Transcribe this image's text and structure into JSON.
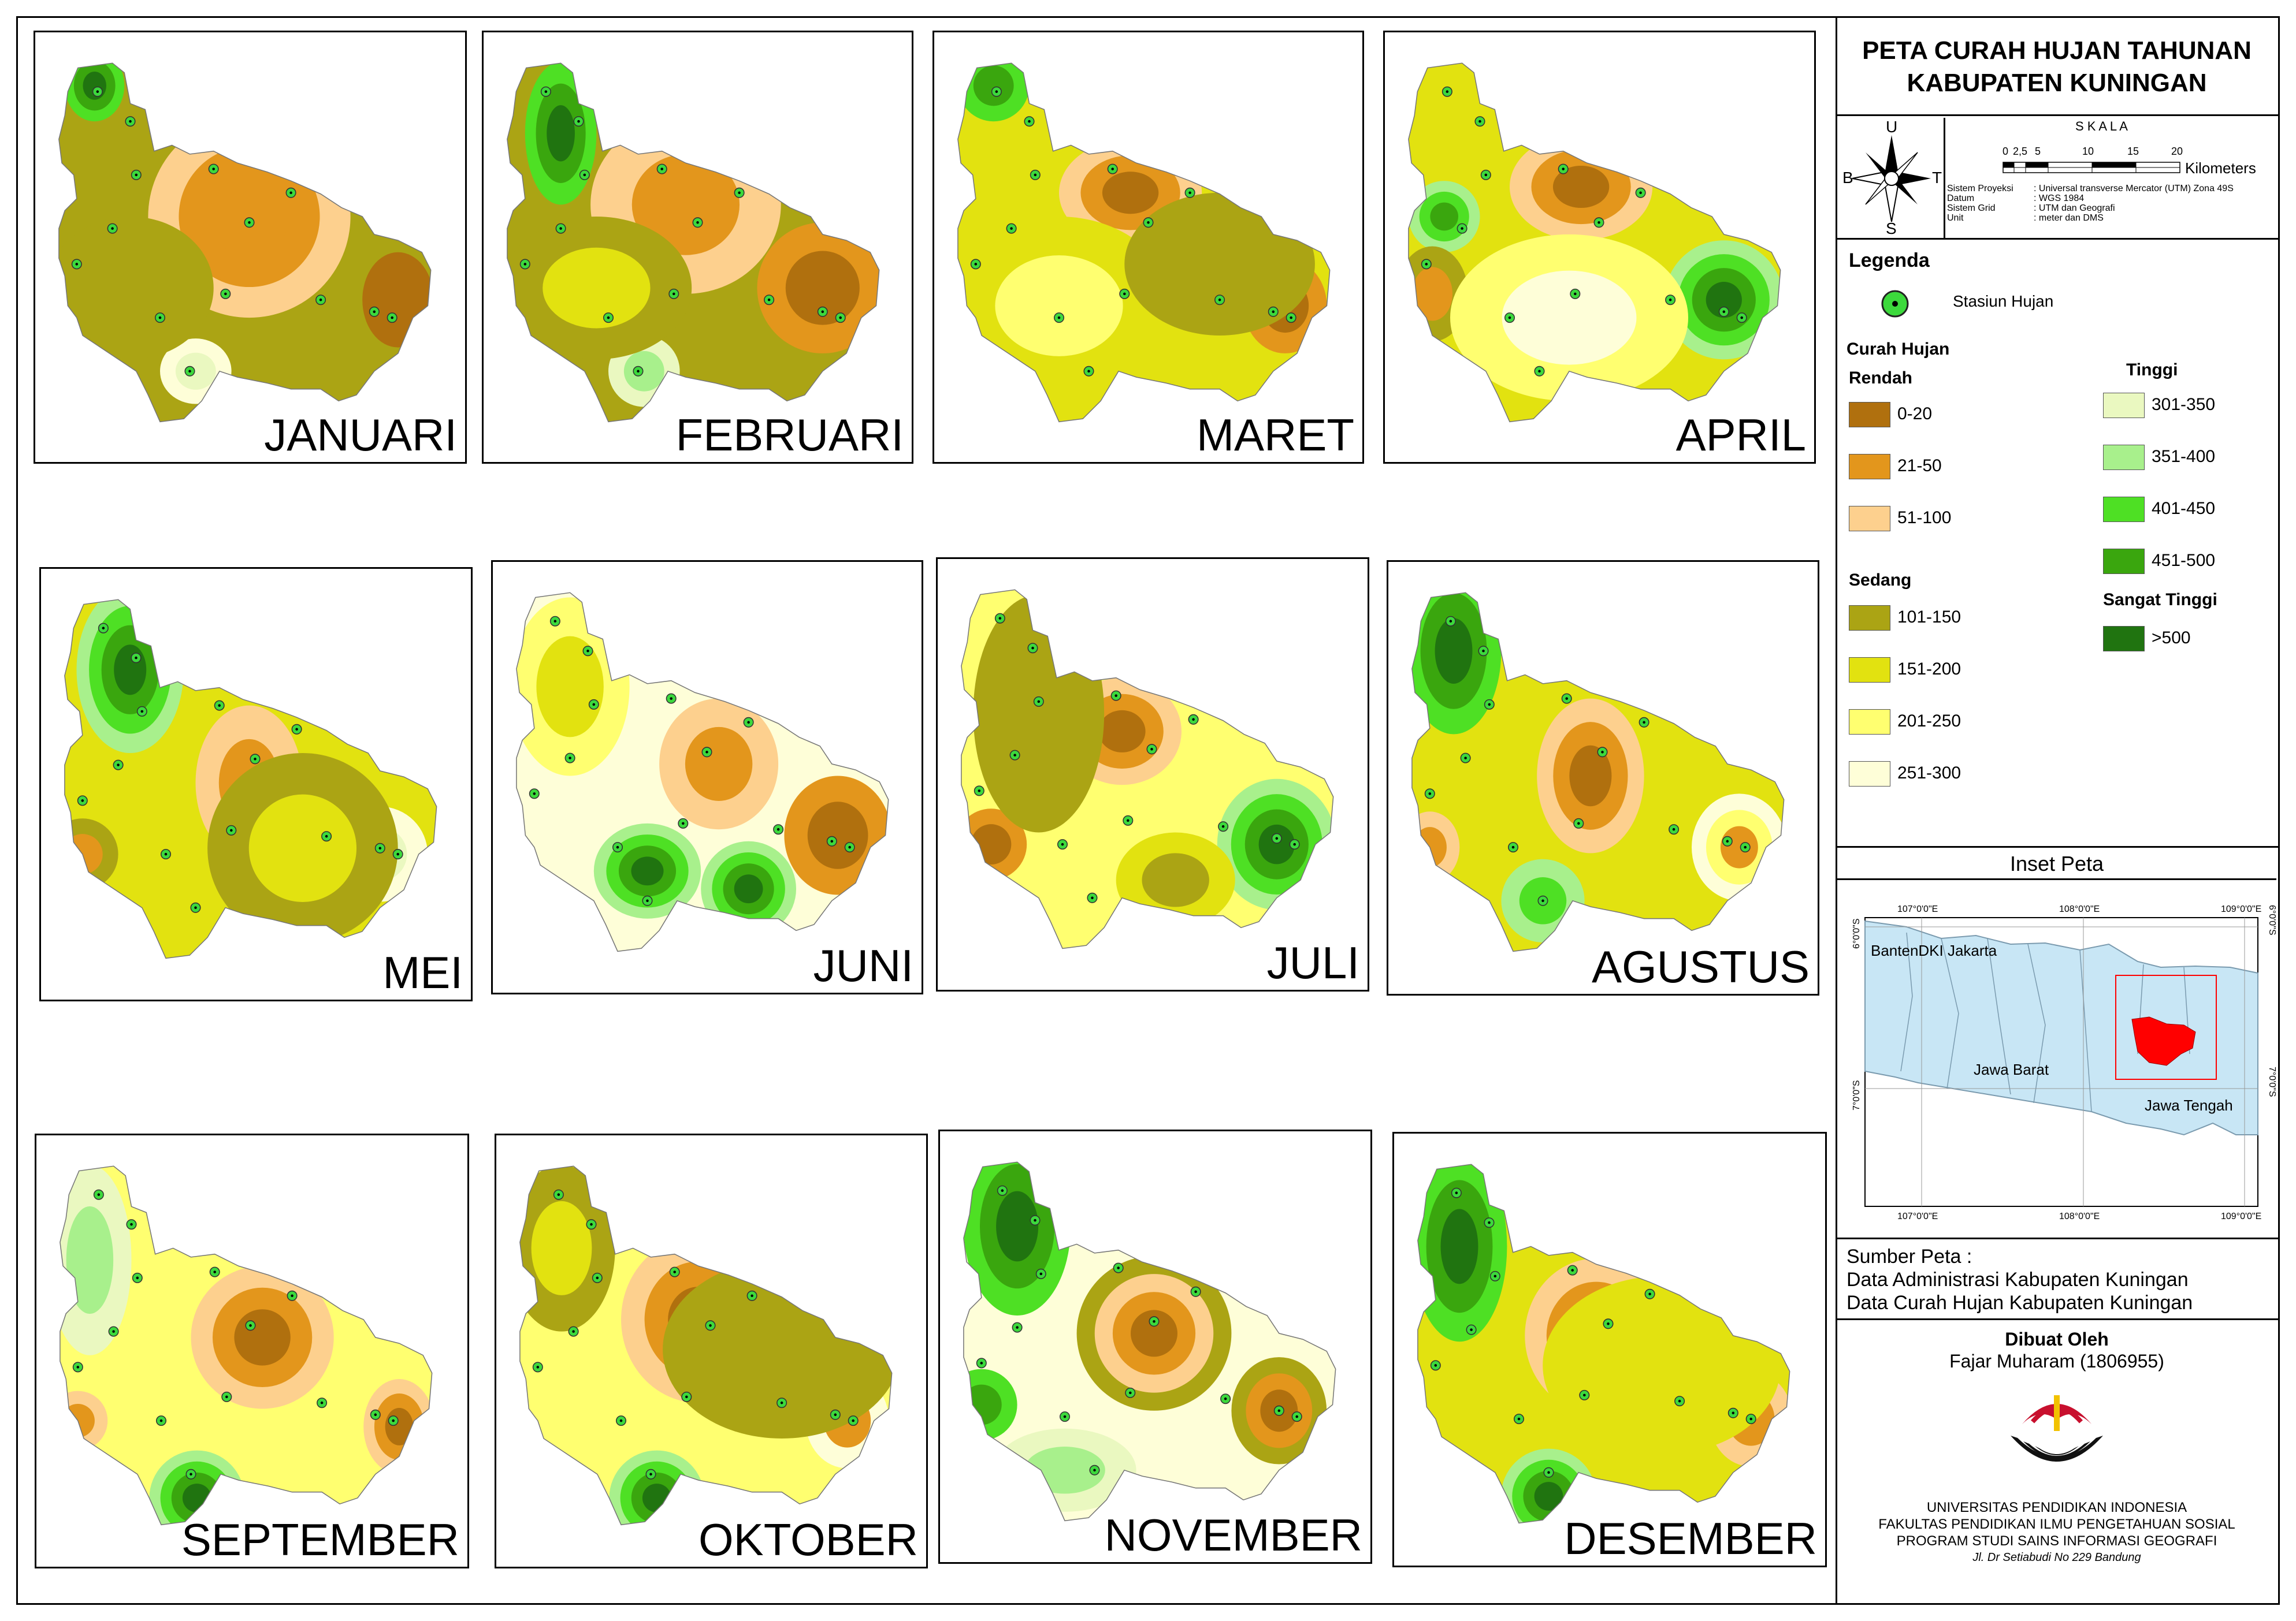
{
  "title": [
    "PETA CURAH HUJAN TAHUNAN",
    "KABUPATEN KUNINGAN"
  ],
  "months": [
    "JANUARI",
    "FEBRUARI",
    "MARET",
    "APRIL",
    "MEI",
    "JUNI",
    "JULI",
    "AGUSTUS",
    "SEPTEMBER",
    "OKTOBER",
    "NOVEMBER",
    "DESEMBER"
  ],
  "compass": {
    "u": "U",
    "b": "B",
    "t": "T",
    "s": "S"
  },
  "scale": {
    "label": "S K A L A",
    "ticks": [
      "0",
      "2,5",
      "5",
      "10",
      "15",
      "20"
    ],
    "unit": "Kilometers",
    "info_keys": [
      "Sistem Proyeksi",
      "Datum",
      "Sistem Grid",
      "Unit"
    ],
    "info_vals": [
      ": Universal transverse Mercator (UTM) Zona 49S",
      ": WGS 1984",
      ": UTM dan Geografi",
      ": meter dan DMS"
    ]
  },
  "legend": {
    "title": "Legenda",
    "station": "Stasiun Hujan",
    "curah_title": "Curah Hujan",
    "groups": {
      "rendah": "Rendah",
      "sedang": "Sedang",
      "tinggi": "Tinggi",
      "sangat": "Sangat Tinggi"
    },
    "classes": [
      {
        "label": "0-20",
        "color": "#b0700e"
      },
      {
        "label": "21-50",
        "color": "#e3961c"
      },
      {
        "label": "51-100",
        "color": "#fdd08e"
      },
      {
        "label": "101-150",
        "color": "#aba414"
      },
      {
        "label": "151-200",
        "color": "#e2e210"
      },
      {
        "label": "201-250",
        "color": "#ffff70"
      },
      {
        "label": "251-300",
        "color": "#fefed8"
      },
      {
        "label": "301-350",
        "color": "#eaf8c0"
      },
      {
        "label": "351-400",
        "color": "#a8f08c"
      },
      {
        "label": "401-450",
        "color": "#4ee024"
      },
      {
        "label": "451-500",
        "color": "#3aa60e"
      },
      {
        "label": ">500",
        "color": "#207410"
      }
    ]
  },
  "inset": {
    "title": "Inset Peta",
    "lon_top": [
      "107°0'0\"E",
      "108°0'0\"E",
      "109°0'0\"E"
    ],
    "lon_bottom": [
      "107°0'0\"E",
      "108°0'0\"E",
      "109°0'0\"E"
    ],
    "lat_left": [
      "6°0'0\"S",
      "7°0'0\"S"
    ],
    "lat_right": [
      "6°0'0\"S",
      "7°0'0\"S"
    ],
    "labels": [
      "BantenDKI Jakarta",
      "Jawa Barat",
      "Jawa Tengah"
    ],
    "highlight_color": "#ff0000",
    "land_color": "#c8e6f5"
  },
  "source": {
    "heading": "Sumber Peta :",
    "lines": [
      "Data Administrasi Kabupaten Kuningan",
      "Data Curah Hujan Kabupaten Kuningan"
    ]
  },
  "author": {
    "heading": "Dibuat Oleh",
    "name": "Fajar Muharam (1806955)"
  },
  "institution": [
    "UNIVERSITAS PENDIDIKAN INDONESIA",
    "FAKULTAS PENDIDIKAN ILMU PENGETAHUAN SOSIAL",
    "PROGRAM STUDI SAINS INFORMASI GEOGRAFI"
  ],
  "address": "Jl. Dr Setiabudi No 229 Bandung"
}
